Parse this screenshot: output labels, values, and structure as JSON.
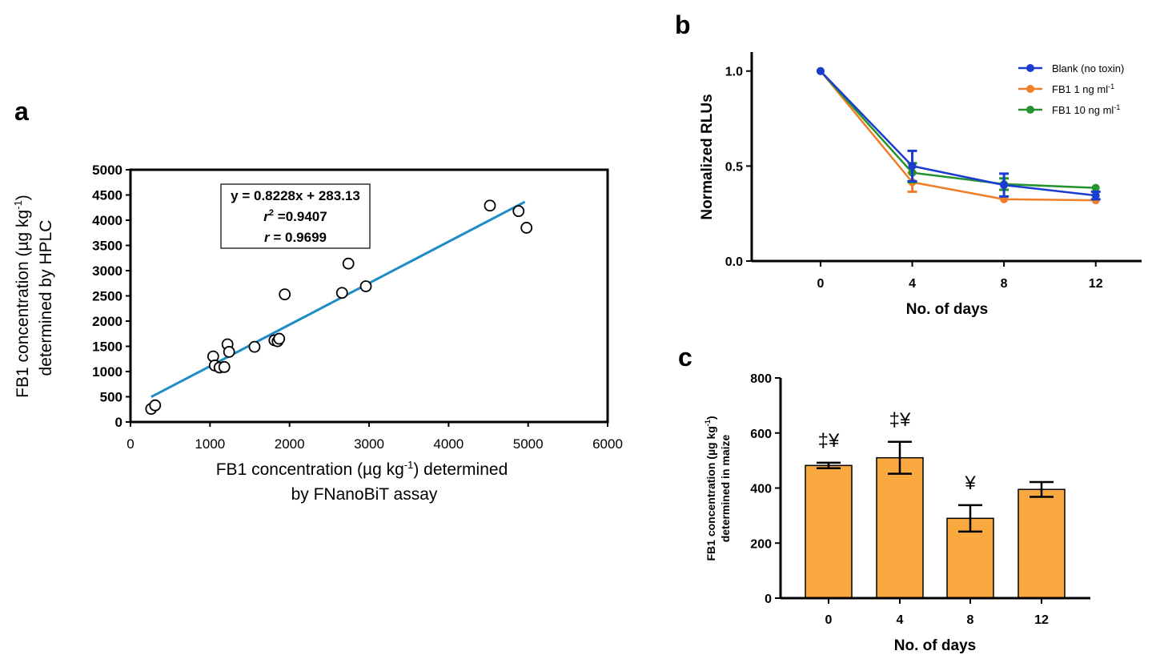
{
  "chart_data": [
    {
      "type": "scatter",
      "panel_label": "a",
      "xlabel_line1": "FB1 concentration (µg kg",
      "xlabel_sup": "-1",
      "xlabel_line1_end": ") determined",
      "xlabel_line2": "by FNanoBiT assay",
      "ylabel_line1": "FB1 concentration (µg kg",
      "ylabel_sup": "-1",
      "ylabel_line1_end": ")",
      "ylabel_line2": "determined by HPLC",
      "xlim": [
        0,
        6000
      ],
      "ylim": [
        0,
        5000
      ],
      "xticks": [
        "0",
        "1000",
        "2000",
        "3000",
        "4000",
        "5000",
        "6000"
      ],
      "yticks": [
        "0",
        "500",
        "1000",
        "1500",
        "2000",
        "2500",
        "3000",
        "3500",
        "4000",
        "4500",
        "5000"
      ],
      "points": [
        {
          "x": 260,
          "y": 260
        },
        {
          "x": 310,
          "y": 330
        },
        {
          "x": 1040,
          "y": 1300
        },
        {
          "x": 1060,
          "y": 1120
        },
        {
          "x": 1120,
          "y": 1080
        },
        {
          "x": 1180,
          "y": 1090
        },
        {
          "x": 1220,
          "y": 1540
        },
        {
          "x": 1240,
          "y": 1390
        },
        {
          "x": 1560,
          "y": 1490
        },
        {
          "x": 1810,
          "y": 1620
        },
        {
          "x": 1850,
          "y": 1600
        },
        {
          "x": 1870,
          "y": 1650
        },
        {
          "x": 1940,
          "y": 2530
        },
        {
          "x": 2660,
          "y": 2560
        },
        {
          "x": 2740,
          "y": 3140
        },
        {
          "x": 2960,
          "y": 2690
        },
        {
          "x": 4520,
          "y": 4290
        },
        {
          "x": 4880,
          "y": 4180
        },
        {
          "x": 4980,
          "y": 3850
        }
      ],
      "fit": {
        "slope": 0.8228,
        "intercept": 283.13,
        "x_range": [
          260,
          4960
        ],
        "color": "#1f8bc7"
      },
      "annotation": {
        "line1": "y = 0.8228x + 283.13",
        "r2_label": "r",
        "r2_sup": "2",
        "r2_value": " =0.9407",
        "r_label": "r",
        "r_value": "  = 0.9699"
      }
    },
    {
      "type": "line",
      "panel_label": "b",
      "xlabel": "No. of days",
      "ylabel": "Normalized RLUs",
      "x": [
        0,
        4,
        8,
        12
      ],
      "xticks": [
        "0",
        "4",
        "8",
        "12"
      ],
      "yticks": [
        "0.0",
        "0.5",
        "1.0"
      ],
      "xlim": [
        -3,
        14
      ],
      "ylim": [
        0,
        1.1
      ],
      "legend_position": "top-right",
      "series": [
        {
          "name": "Blank (no toxin)",
          "name_sup": "",
          "color": "#1a3ccf",
          "values": [
            1.0,
            0.5,
            0.4,
            0.345
          ],
          "errors": [
            0,
            0.08,
            0.06,
            0.02
          ]
        },
        {
          "name": "FB1 1 ng ml",
          "name_sup": "-1",
          "color": "#f07d28",
          "values": [
            1.0,
            0.415,
            0.325,
            0.32
          ],
          "errors": [
            0,
            0.05,
            0,
            0
          ]
        },
        {
          "name": "FB1 10 ng ml",
          "name_sup": "-1",
          "color": "#23922f",
          "values": [
            1.0,
            0.465,
            0.405,
            0.385
          ],
          "errors": [
            0,
            0.05,
            0.03,
            0
          ]
        }
      ]
    },
    {
      "type": "bar",
      "panel_label": "c",
      "xlabel": "No. of days",
      "ylabel_line1": "FB1 concentration (µg kg",
      "ylabel_sup": "-1",
      "ylabel_line1_end": ")",
      "ylabel_line2": "determined in maize",
      "categories": [
        "0",
        "4",
        "8",
        "12"
      ],
      "values": [
        482,
        510,
        290,
        395
      ],
      "errors": [
        10,
        58,
        48,
        27
      ],
      "annotations": [
        "‡¥",
        "‡¥",
        "¥",
        ""
      ],
      "yticks": [
        "0",
        "200",
        "400",
        "600",
        "800"
      ],
      "ylim": [
        0,
        800
      ],
      "bar_color": "#f9a93f"
    }
  ]
}
